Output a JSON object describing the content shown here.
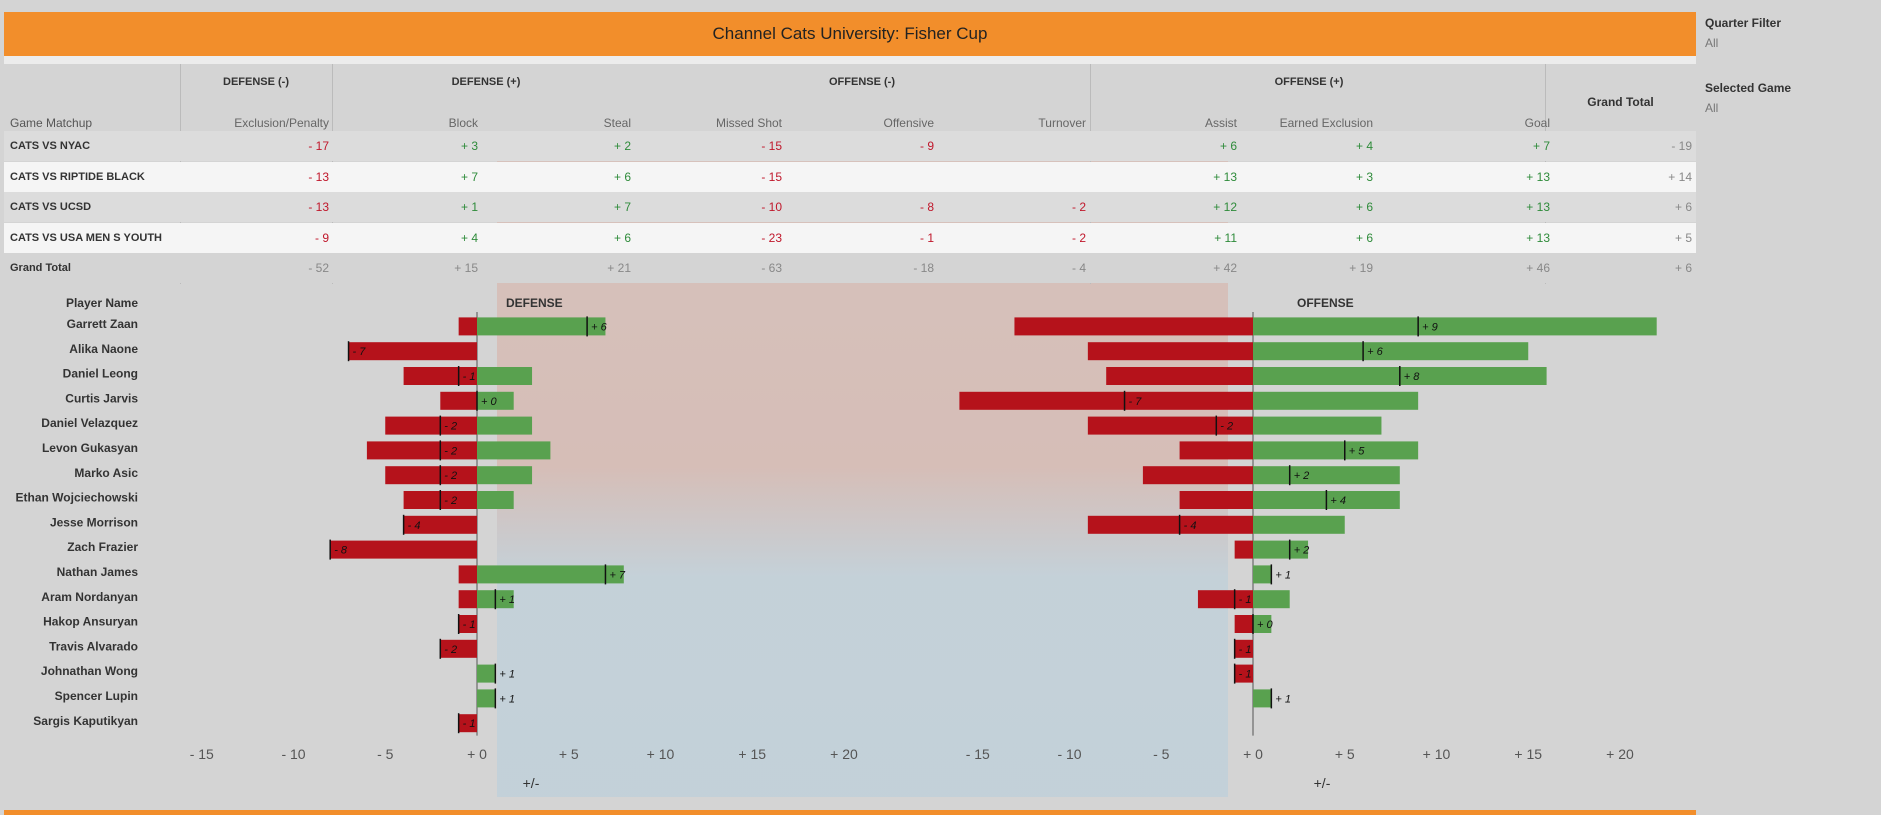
{
  "title": "Channel Cats University: Fisher Cup",
  "filters": {
    "quarter": {
      "label": "Quarter Filter",
      "value": "All"
    },
    "game": {
      "label": "Selected Game",
      "value": "All"
    }
  },
  "table": {
    "groups": [
      "DEFENSE (-)",
      "DEFENSE (+)",
      "OFFENSE (-)",
      "OFFENSE (+)"
    ],
    "row_header": "Game Matchup",
    "grand_total_col": "Grand Total",
    "columns": [
      "Exclusion/Penalty",
      "Block",
      "Steal",
      "Missed Shot",
      "Offensive",
      "Turnover",
      "Assist",
      "Earned Exclusion",
      "Goal"
    ],
    "rows": [
      {
        "name": "CATS VS NYAC",
        "values": [
          "- 17",
          "+ 3",
          "+ 2",
          "- 15",
          "- 9",
          "",
          "+ 6",
          "+ 4",
          "+ 7"
        ],
        "total": "- 19"
      },
      {
        "name": "CATS VS RIPTIDE BLACK",
        "values": [
          "- 13",
          "+ 7",
          "+ 6",
          "- 15",
          "",
          "",
          "+ 13",
          "+ 3",
          "+ 13"
        ],
        "total": "+ 14"
      },
      {
        "name": "CATS VS UCSD",
        "values": [
          "- 13",
          "+ 1",
          "+ 7",
          "- 10",
          "- 8",
          "- 2",
          "+ 12",
          "+ 6",
          "+ 13"
        ],
        "total": "+ 6"
      },
      {
        "name": "CATS VS USA MEN S YOUTH",
        "values": [
          "- 9",
          "+ 4",
          "+ 6",
          "- 23",
          "- 1",
          "- 2",
          "+ 11",
          "+ 6",
          "+ 13"
        ],
        "total": "+ 5"
      }
    ],
    "grand_total": {
      "name": "Grand Total",
      "values": [
        "- 52",
        "+ 15",
        "+ 21",
        "- 63",
        "- 18",
        "- 4",
        "+ 42",
        "+ 19",
        "+ 46"
      ],
      "total": "+ 6"
    }
  },
  "chart_data": {
    "type": "bar",
    "row_header": "Player Name",
    "players": [
      "Garrett Zaan",
      "Alika Naone",
      "Daniel Leong",
      "Curtis Jarvis",
      "Daniel Velazquez",
      "Levon Gukasyan",
      "Marko Asic",
      "Ethan Wojciechowski",
      "Jesse Morrison",
      "Zach Frazier",
      "Nathan James",
      "Aram Nordanyan",
      "Hakop Ansuryan",
      "Travis Alvarado",
      "Johnathan Wong",
      "Spencer Lupin",
      "Sargis Kaputikyan"
    ],
    "panels": [
      {
        "title": "DEFENSE",
        "xlabel": "+/-",
        "xlim": [
          -16,
          21
        ],
        "ticks": [
          "- 15",
          "- 10",
          "- 5",
          "+ 0",
          "+ 5",
          "+ 10",
          "+ 15",
          "+ 20"
        ],
        "tick_values": [
          -15,
          -10,
          -5,
          0,
          5,
          10,
          15,
          20
        ],
        "neg": [
          -1,
          -7,
          -4,
          -2,
          -5,
          -6,
          -5,
          -4,
          -4,
          -8,
          -1,
          -1,
          -1,
          -2,
          0,
          0,
          -1
        ],
        "pos": [
          7,
          0,
          3,
          2,
          3,
          4,
          3,
          2,
          0,
          0,
          8,
          2,
          0,
          0,
          1,
          1,
          0
        ],
        "net": [
          6,
          -7,
          -1,
          0,
          -2,
          -2,
          -2,
          -2,
          -4,
          -8,
          7,
          1,
          -1,
          -2,
          1,
          1,
          -1
        ],
        "net_labels": [
          "+ 6",
          "- 7",
          "- 1",
          "+ 0",
          "- 2",
          "- 2",
          "- 2",
          "- 2",
          "- 4",
          "- 8",
          "+ 7",
          "+ 1",
          "- 1",
          "- 2",
          "+ 1",
          "+ 1",
          "- 1"
        ]
      },
      {
        "title": "OFFENSE",
        "xlabel": "+/-",
        "xlim": [
          -16,
          24
        ],
        "ticks": [
          "- 15",
          "- 10",
          "- 5",
          "+ 0",
          "+ 5",
          "+ 10",
          "+ 15",
          "+ 20"
        ],
        "tick_values": [
          -15,
          -10,
          -5,
          0,
          5,
          10,
          15,
          20
        ],
        "neg": [
          -13,
          -9,
          -8,
          -16,
          -9,
          -4,
          -6,
          -4,
          -9,
          -1,
          0,
          -3,
          -1,
          -1,
          -1,
          0,
          0
        ],
        "pos": [
          22,
          15,
          16,
          9,
          7,
          9,
          8,
          8,
          5,
          3,
          1,
          2,
          1,
          0,
          0,
          1,
          0
        ],
        "net": [
          9,
          6,
          8,
          -7,
          -2,
          5,
          2,
          4,
          -4,
          2,
          1,
          -1,
          0,
          -1,
          -1,
          1,
          null
        ],
        "net_labels": [
          "+ 9",
          "+ 6",
          "+ 8",
          "- 7",
          "- 2",
          "+ 5",
          "+ 2",
          "+ 4",
          "- 4",
          "+ 2",
          "+ 1",
          "- 1",
          "+ 0",
          "- 1",
          "- 1",
          "+ 1",
          ""
        ]
      }
    ],
    "colors": {
      "negative": "#b5121b",
      "positive": "#59a14f"
    }
  }
}
